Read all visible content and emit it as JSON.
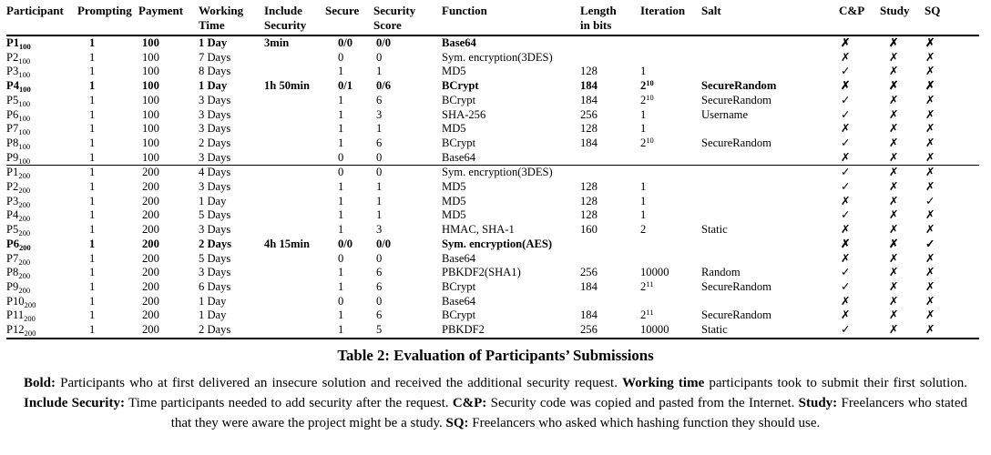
{
  "caption": "Table 2: Evaluation of Participants’ Submissions",
  "table": {
    "columns": [
      "Participant",
      "Prompting",
      "Payment",
      "Working\nTime",
      "Include\nSecurity",
      "Secure",
      "Security\nScore",
      "Function",
      "Length\nin bits",
      "Iteration",
      "Salt",
      "C&P",
      "Study",
      "SQ"
    ],
    "group_100": [
      {
        "bold": true,
        "cells": [
          "P1_100",
          "1",
          "100",
          "1 Day",
          "3min",
          "0/0",
          "0/0",
          "Base64",
          "",
          "",
          "",
          "✗",
          "✗",
          "✗"
        ]
      },
      {
        "bold": false,
        "cells": [
          "P2_100",
          "1",
          "100",
          "7 Days",
          "",
          "0",
          "0",
          "Sym. encryption(3DES)",
          "",
          "",
          "",
          "✗",
          "✗",
          "✗"
        ]
      },
      {
        "bold": false,
        "cells": [
          "P3_100",
          "1",
          "100",
          "8 Days",
          "",
          "1",
          "1",
          "MD5",
          "128",
          "1",
          "",
          "✓",
          "✗",
          "✗"
        ]
      },
      {
        "bold": true,
        "cells": [
          "P4_100",
          "1",
          "100",
          "1 Day",
          "1h 50min",
          "0/1",
          "0/6",
          "BCrypt",
          "184",
          "2^10",
          "SecureRandom",
          "✗",
          "✗",
          "✗"
        ]
      },
      {
        "bold": false,
        "cells": [
          "P5_100",
          "1",
          "100",
          "3 Days",
          "",
          "1",
          "6",
          "BCrypt",
          "184",
          "2^10",
          "SecureRandom",
          "✓",
          "✗",
          "✗"
        ]
      },
      {
        "bold": false,
        "cells": [
          "P6_100",
          "1",
          "100",
          "3 Days",
          "",
          "1",
          "3",
          "SHA-256",
          "256",
          "1",
          "Username",
          "✓",
          "✗",
          "✗"
        ]
      },
      {
        "bold": false,
        "cells": [
          "P7_100",
          "1",
          "100",
          "3 Days",
          "",
          "1",
          "1",
          "MD5",
          "128",
          "1",
          "",
          "✗",
          "✗",
          "✗"
        ]
      },
      {
        "bold": false,
        "cells": [
          "P8_100",
          "1",
          "100",
          "2 Days",
          "",
          "1",
          "6",
          "BCrypt",
          "184",
          "2^10",
          "SecureRandom",
          "✓",
          "✗",
          "✗"
        ]
      },
      {
        "bold": false,
        "cells": [
          "P9_100",
          "1",
          "100",
          "3 Days",
          "",
          "0",
          "0",
          "Base64",
          "",
          "",
          "",
          "✗",
          "✗",
          "✗"
        ]
      }
    ],
    "group_200": [
      {
        "bold": false,
        "cells": [
          "P1_200",
          "1",
          "200",
          "4 Days",
          "",
          "0",
          "0",
          "Sym. encryption(3DES)",
          "",
          "",
          "",
          "✓",
          "✗",
          "✗"
        ]
      },
      {
        "bold": false,
        "cells": [
          "P2_200",
          "1",
          "200",
          "3 Days",
          "",
          "1",
          "1",
          "MD5",
          "128",
          "1",
          "",
          "✓",
          "✗",
          "✗"
        ]
      },
      {
        "bold": false,
        "cells": [
          "P3_200",
          "1",
          "200",
          "1 Day",
          "",
          "1",
          "1",
          "MD5",
          "128",
          "1",
          "",
          "✗",
          "✗",
          "✓"
        ]
      },
      {
        "bold": false,
        "cells": [
          "P4_200",
          "1",
          "200",
          "5 Days",
          "",
          "1",
          "1",
          "MD5",
          "128",
          "1",
          "",
          "✓",
          "✗",
          "✗"
        ]
      },
      {
        "bold": false,
        "cells": [
          "P5_200",
          "1",
          "200",
          "3 Days",
          "",
          "1",
          "3",
          "HMAC, SHA-1",
          "160",
          "2",
          "Static",
          "✗",
          "✗",
          "✗"
        ]
      },
      {
        "bold": true,
        "cells": [
          "P6_200",
          "1",
          "200",
          "2 Days",
          "4h 15min",
          "0/0",
          "0/0",
          "Sym. encryption(AES)",
          "",
          "",
          "",
          "✗",
          "✗",
          "✓"
        ]
      },
      {
        "bold": false,
        "cells": [
          "P7_200",
          "1",
          "200",
          "5 Days",
          "",
          "0",
          "0",
          "Base64",
          "",
          "",
          "",
          "✗",
          "✗",
          "✗"
        ]
      },
      {
        "bold": false,
        "cells": [
          "P8_200",
          "1",
          "200",
          "3 Days",
          "",
          "1",
          "6",
          "PBKDF2(SHA1)",
          "256",
          "10000",
          "Random",
          "✓",
          "✗",
          "✗"
        ]
      },
      {
        "bold": false,
        "cells": [
          "P9_200",
          "1",
          "200",
          "6 Days",
          "",
          "1",
          "6",
          "BCrypt",
          "184",
          "2^11",
          "SecureRandom",
          "✓",
          "✗",
          "✗"
        ]
      },
      {
        "bold": false,
        "cells": [
          "P10_200",
          "1",
          "200",
          "1 Day",
          "",
          "0",
          "0",
          "Base64",
          "",
          "",
          "",
          "✗",
          "✗",
          "✗"
        ]
      },
      {
        "bold": false,
        "cells": [
          "P11_200",
          "1",
          "200",
          "1 Day",
          "",
          "1",
          "6",
          "BCrypt",
          "184",
          "2^11",
          "SecureRandom",
          "✗",
          "✗",
          "✗"
        ]
      },
      {
        "bold": false,
        "cells": [
          "P12_200",
          "1",
          "200",
          "2 Days",
          "",
          "1",
          "5",
          "PBKDF2",
          "256",
          "10000",
          "Static",
          "✓",
          "✗",
          "✗"
        ]
      }
    ]
  },
  "footnote_segments": [
    {
      "bold": true,
      "text": "Bold:"
    },
    {
      "bold": false,
      "text": " Participants who at first delivered an insecure solution and received the additional security request. "
    },
    {
      "bold": true,
      "text": "Working time"
    },
    {
      "bold": false,
      "text": " participants took to submit their first solution. "
    },
    {
      "bold": true,
      "text": "Include Security:"
    },
    {
      "bold": false,
      "text": " Time participants needed to add security after the request. "
    },
    {
      "bold": true,
      "text": "C&P:"
    },
    {
      "bold": false,
      "text": " Security code was copied and pasted from the Internet. "
    },
    {
      "bold": true,
      "text": "Study:"
    },
    {
      "bold": false,
      "text": " Freelancers who stated that they were aware the project might be a study. "
    },
    {
      "bold": true,
      "text": "SQ:"
    },
    {
      "bold": false,
      "text": " Freelancers who asked which hashing function they should use."
    }
  ],
  "icons": {
    "check": "✓",
    "cross": "✗"
  },
  "colors": {
    "text": "#000000",
    "background": "#ffffff",
    "rule": "#000000"
  }
}
